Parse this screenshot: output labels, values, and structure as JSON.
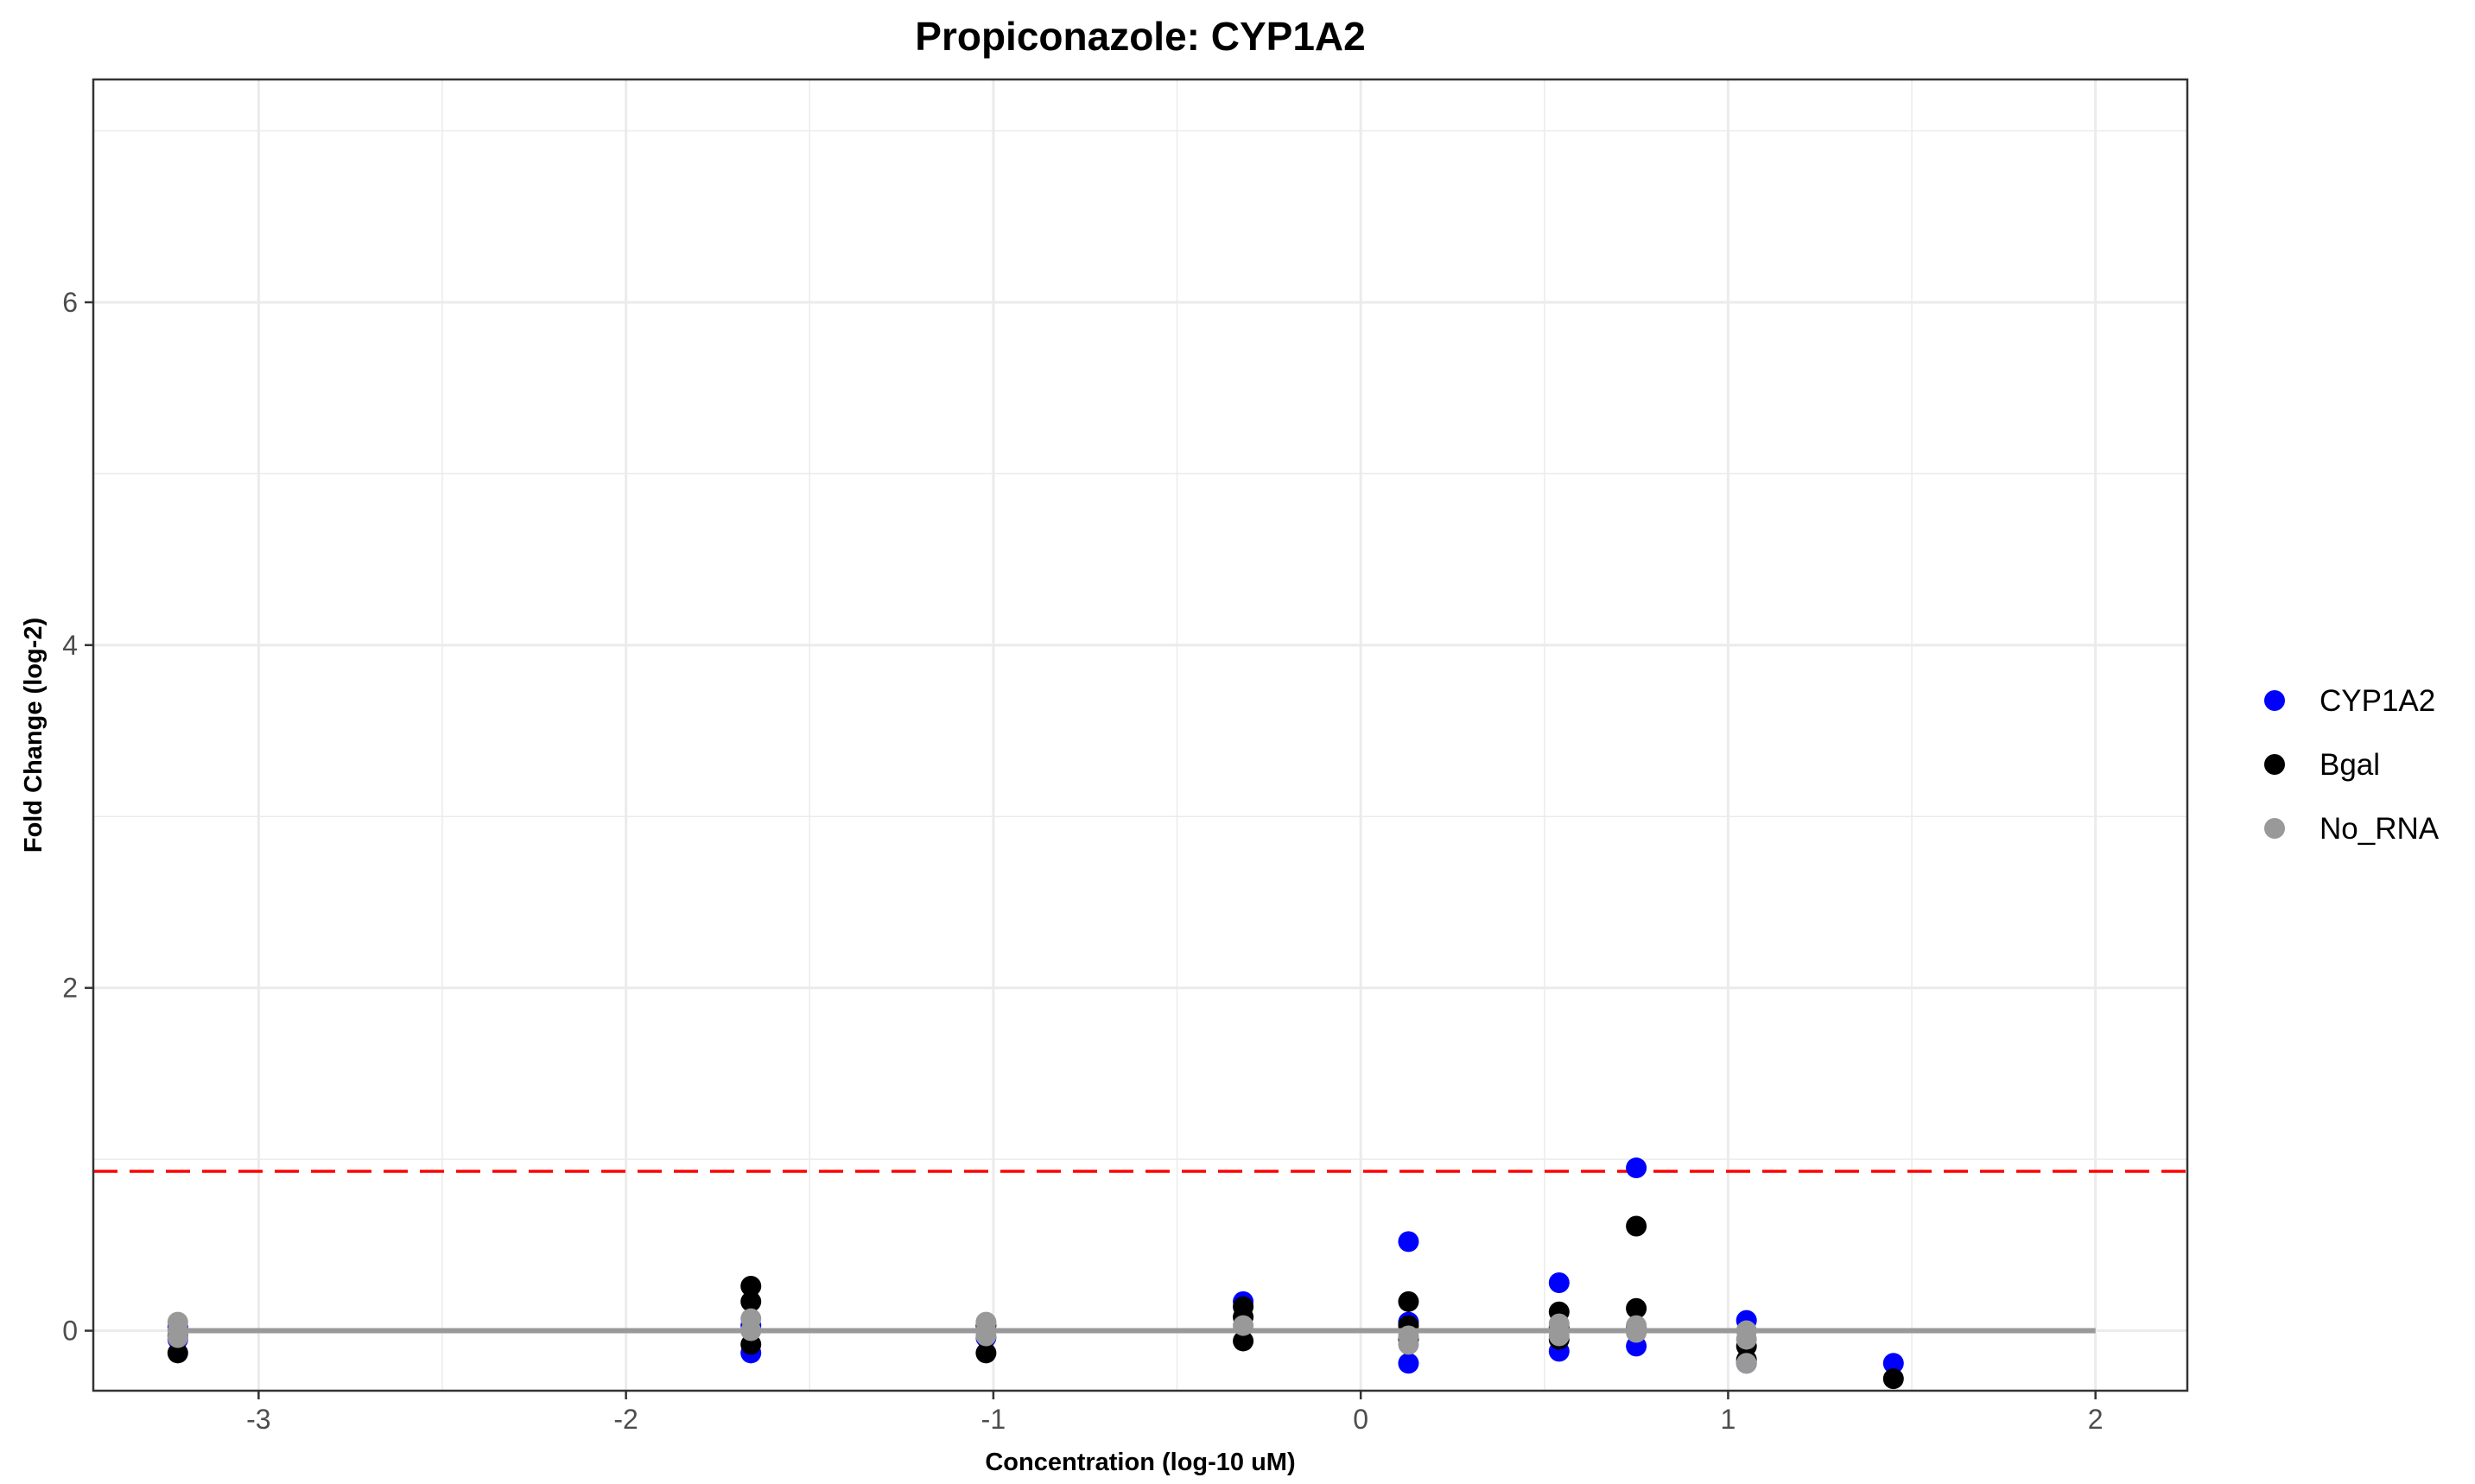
{
  "chart_data": {
    "type": "scatter",
    "title": "Propiconazole: CYP1A2",
    "xlabel": "Concentration (log-10 uM)",
    "ylabel": "Fold Change (log-2)",
    "xlim": [
      -3.45,
      2.25
    ],
    "ylim": [
      -0.35,
      7.3
    ],
    "x_ticks": [
      -3,
      -2,
      -1,
      0,
      1,
      2
    ],
    "y_ticks": [
      0,
      2,
      4,
      6
    ],
    "grid": true,
    "legend_position": "right",
    "threshold_line": {
      "y": 0.93,
      "color": "#ff0000",
      "style": "dashed"
    },
    "baseline_line": {
      "x": [
        -3.22,
        2.0
      ],
      "y": 0,
      "color": "#999999"
    },
    "series": [
      {
        "name": "CYP1A2",
        "color": "#0000ff",
        "points": [
          {
            "x": -3.22,
            "y": 0.02
          },
          {
            "x": -3.22,
            "y": -0.05
          },
          {
            "x": -1.66,
            "y": -0.13
          },
          {
            "x": -1.66,
            "y": 0.03
          },
          {
            "x": -1.02,
            "y": -0.04
          },
          {
            "x": -0.32,
            "y": 0.17
          },
          {
            "x": 0.13,
            "y": 0.52
          },
          {
            "x": 0.13,
            "y": 0.05
          },
          {
            "x": 0.13,
            "y": -0.19
          },
          {
            "x": 0.54,
            "y": 0.28
          },
          {
            "x": 0.54,
            "y": -0.12
          },
          {
            "x": 0.75,
            "y": 0.95
          },
          {
            "x": 0.75,
            "y": -0.09
          },
          {
            "x": 1.05,
            "y": 0.06
          },
          {
            "x": 1.05,
            "y": -0.19
          },
          {
            "x": 1.45,
            "y": -0.19
          }
        ]
      },
      {
        "name": "Bgal",
        "color": "#000000",
        "points": [
          {
            "x": -3.22,
            "y": -0.13
          },
          {
            "x": -3.22,
            "y": -0.03
          },
          {
            "x": -1.66,
            "y": 0.26
          },
          {
            "x": -1.66,
            "y": 0.17
          },
          {
            "x": -1.66,
            "y": -0.08
          },
          {
            "x": -1.02,
            "y": -0.13
          },
          {
            "x": -1.02,
            "y": 0.03
          },
          {
            "x": -0.32,
            "y": 0.14
          },
          {
            "x": -0.32,
            "y": 0.08
          },
          {
            "x": -0.32,
            "y": -0.06
          },
          {
            "x": 0.13,
            "y": 0.17
          },
          {
            "x": 0.13,
            "y": 0.03
          },
          {
            "x": 0.13,
            "y": -0.05
          },
          {
            "x": 0.54,
            "y": 0.11
          },
          {
            "x": 0.54,
            "y": 0.02
          },
          {
            "x": 0.54,
            "y": -0.05
          },
          {
            "x": 0.75,
            "y": 0.61
          },
          {
            "x": 0.75,
            "y": 0.13
          },
          {
            "x": 0.75,
            "y": 0.02
          },
          {
            "x": 1.05,
            "y": -0.09
          },
          {
            "x": 1.05,
            "y": -0.17
          },
          {
            "x": 1.45,
            "y": -0.28
          }
        ]
      },
      {
        "name": "No_RNA",
        "color": "#999999",
        "points": [
          {
            "x": -3.22,
            "y": 0.05
          },
          {
            "x": -3.22,
            "y": 0.0
          },
          {
            "x": -3.22,
            "y": -0.04
          },
          {
            "x": -1.66,
            "y": 0.07
          },
          {
            "x": -1.66,
            "y": 0.0
          },
          {
            "x": -1.02,
            "y": 0.05
          },
          {
            "x": -1.02,
            "y": 0.0
          },
          {
            "x": -1.02,
            "y": -0.03
          },
          {
            "x": -0.32,
            "y": 0.03
          },
          {
            "x": 0.13,
            "y": -0.03
          },
          {
            "x": 0.13,
            "y": -0.08
          },
          {
            "x": 0.54,
            "y": 0.04
          },
          {
            "x": 0.54,
            "y": -0.03
          },
          {
            "x": 0.75,
            "y": 0.03
          },
          {
            "x": 0.75,
            "y": -0.01
          },
          {
            "x": 1.05,
            "y": 0.0
          },
          {
            "x": 1.05,
            "y": -0.05
          },
          {
            "x": 1.05,
            "y": -0.19
          }
        ]
      }
    ]
  }
}
